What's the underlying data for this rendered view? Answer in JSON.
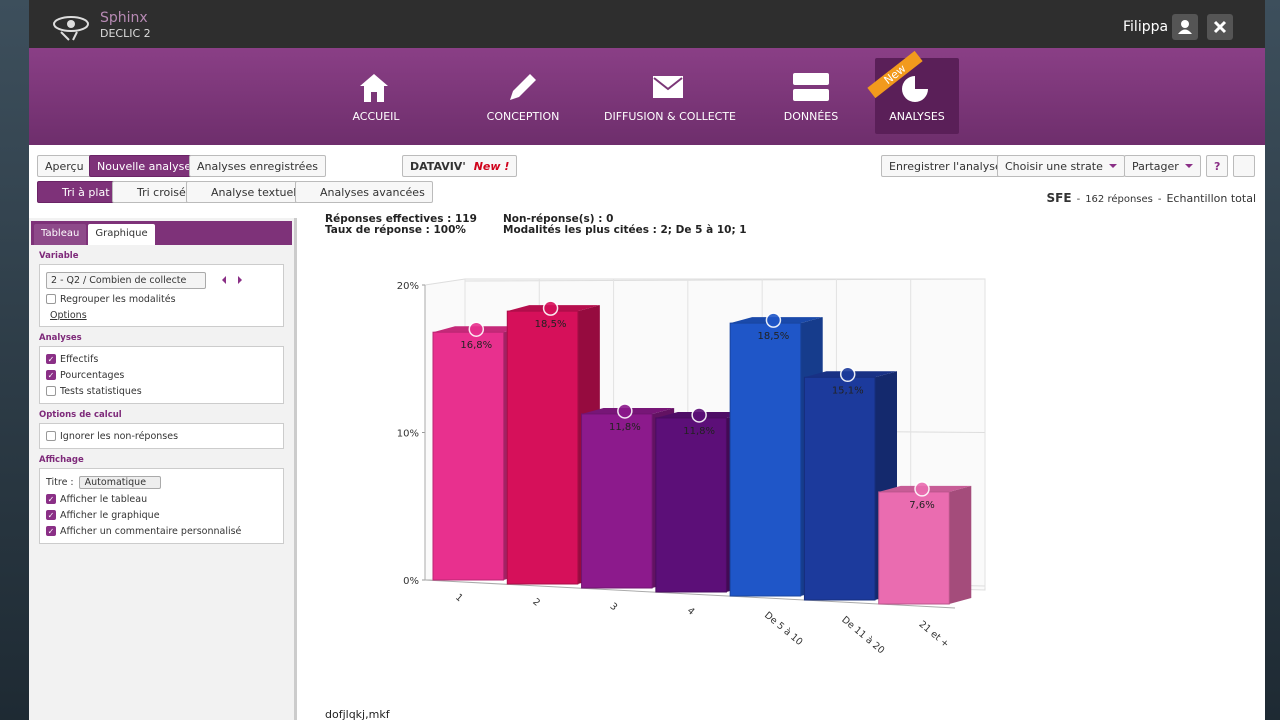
{
  "header": {
    "brand": "Sphinx",
    "product": "DECLIC 2",
    "user": "Filippa"
  },
  "nav": [
    {
      "label": "ACCUEIL"
    },
    {
      "label": "CONCEPTION"
    },
    {
      "label": "DIFFUSION & COLLECTE"
    },
    {
      "label": "DONNÉES"
    },
    {
      "label": "ANALYSES",
      "badge": "New",
      "active": true
    }
  ],
  "toolbar": {
    "left": [
      {
        "label": "Aperçu"
      },
      {
        "label": "Nouvelle analyse",
        "active": true
      },
      {
        "label": "Analyses enregistrées"
      }
    ],
    "dataviv": "DATAVIV'",
    "dataviv_badge": "New !",
    "right": [
      {
        "label": "Enregistrer l'analyse"
      },
      {
        "label": "Choisir une strate",
        "dropdown": true
      },
      {
        "label": "Partager",
        "dropdown": true
      },
      {
        "label": "?"
      }
    ]
  },
  "tabs": [
    {
      "label": "Tri à plat",
      "active": true
    },
    {
      "label": "Tri croisé"
    },
    {
      "label": "Analyse textuelle"
    },
    {
      "label": "Analyses avancées"
    }
  ],
  "status": {
    "survey": "SFE",
    "separator": "-",
    "responses": "162 réponses",
    "sample": "Echantillon total"
  },
  "sidebar": {
    "tabs": [
      {
        "label": "Tableau"
      },
      {
        "label": "Graphique",
        "active": true
      }
    ],
    "sections": [
      {
        "title": "Variable",
        "select": "2 - Q2 / Combien de collecte",
        "items": [
          {
            "label": "Regrouper les modalités",
            "checked": false
          }
        ],
        "link": "Options"
      },
      {
        "title": "Analyses",
        "items": [
          {
            "label": "Effectifs",
            "checked": true
          },
          {
            "label": "Pourcentages",
            "checked": true
          },
          {
            "label": "Tests statistiques",
            "checked": false
          }
        ]
      },
      {
        "title": "Options de calcul",
        "items": [
          {
            "label": "Ignorer les non-réponses",
            "checked": false
          }
        ]
      },
      {
        "title": "Affichage",
        "field_label": "Titre :",
        "field_value": "Automatique",
        "items": [
          {
            "label": "Afficher le tableau",
            "checked": true
          },
          {
            "label": "Afficher le graphique",
            "checked": true
          },
          {
            "label": "Afficher un commentaire personnalisé",
            "checked": true
          }
        ]
      }
    ]
  },
  "summary": [
    [
      "Réponses effectives : 119",
      "Non-réponse(s) : 0"
    ],
    [
      "Taux de réponse : 100%",
      "Modalités les plus citées : 2; De 5 à 10; 1"
    ]
  ],
  "chart_data": {
    "type": "bar3d",
    "categories": [
      "1",
      "2",
      "3",
      "4",
      "De 5 à 10",
      "De 11 à 20",
      "21 et +"
    ],
    "values": [
      16.8,
      18.5,
      11.8,
      11.8,
      18.5,
      15.1,
      7.6
    ],
    "value_labels": [
      "16,8%",
      "18,5%",
      "11,8%",
      "11,8%",
      "18,5%",
      "15,1%",
      "7,6%"
    ],
    "colors": [
      "#e8308e",
      "#d6105a",
      "#8c1a8c",
      "#5c0f78",
      "#1f56c8",
      "#1c3a9c",
      "#ea6cb0"
    ],
    "ylim": [
      0,
      20
    ],
    "yticks": [
      {
        "value": 0,
        "label": "0%"
      },
      {
        "value": 10,
        "label": "10%"
      },
      {
        "value": 20,
        "label": "20%"
      }
    ],
    "grid": true
  },
  "footer_text": "dofjlqkj,mkf"
}
